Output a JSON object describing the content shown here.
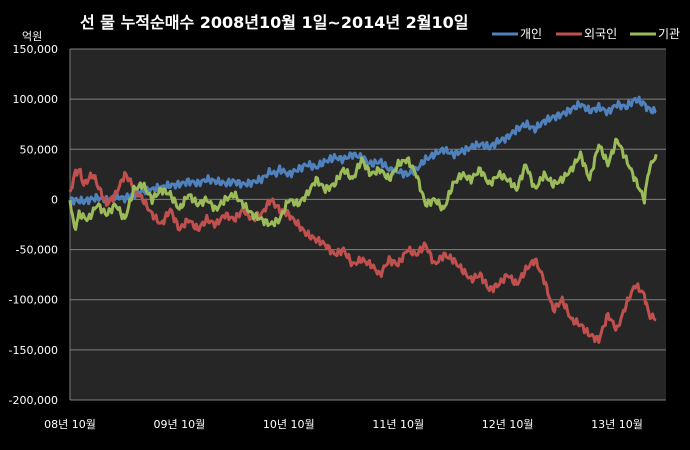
{
  "chart_data": {
    "type": "line",
    "title": "선 물 누적순매수 2008년10월 1일~2014년 2월10일",
    "unit_label": "억원",
    "ylim": [
      -200000,
      150000
    ],
    "y_ticks": [
      150000,
      100000,
      50000,
      0,
      -50000,
      -100000,
      -150000,
      -200000
    ],
    "y_tick_labels": [
      "150,000",
      "100,000",
      "50,000",
      "0",
      "-50,000",
      "-100,000",
      "-150,000",
      "-200,000"
    ],
    "x_tick_labels": [
      "08년 10월",
      "09년 10월",
      "10년 10월",
      "11년 10월",
      "12년 10월",
      "13년 10월"
    ],
    "x_tick_months": [
      0,
      12,
      24,
      36,
      48,
      60
    ],
    "x_range_months": [
      0,
      64.3
    ],
    "grid": "horizontal",
    "legend_position": "top-right",
    "series": [
      {
        "name": "개인",
        "color": "#4f81bd",
        "points": [
          [
            0,
            0
          ],
          [
            1.5,
            -2000
          ],
          [
            3,
            2000
          ],
          [
            4,
            -1000
          ],
          [
            5,
            3000
          ],
          [
            6,
            1000
          ],
          [
            7,
            5000
          ],
          [
            8,
            8000
          ],
          [
            9,
            10000
          ],
          [
            10,
            12000
          ],
          [
            11,
            14000
          ],
          [
            12,
            15000
          ],
          [
            13,
            18000
          ],
          [
            14,
            16000
          ],
          [
            15,
            20000
          ],
          [
            16,
            18000
          ],
          [
            17,
            16000
          ],
          [
            18,
            18000
          ],
          [
            19,
            15000
          ],
          [
            20,
            17000
          ],
          [
            21,
            20000
          ],
          [
            22,
            28000
          ],
          [
            22.5,
            25000
          ],
          [
            23,
            30000
          ],
          [
            24,
            25000
          ],
          [
            25,
            30000
          ],
          [
            26,
            35000
          ],
          [
            27,
            32000
          ],
          [
            28,
            38000
          ],
          [
            29,
            42000
          ],
          [
            30,
            40000
          ],
          [
            31,
            45000
          ],
          [
            32,
            42000
          ],
          [
            33,
            35000
          ],
          [
            34,
            38000
          ],
          [
            35,
            30000
          ],
          [
            36,
            28000
          ],
          [
            37,
            25000
          ],
          [
            38,
            30000
          ],
          [
            39,
            40000
          ],
          [
            40,
            45000
          ],
          [
            41,
            50000
          ],
          [
            42,
            45000
          ],
          [
            43,
            48000
          ],
          [
            44,
            52000
          ],
          [
            45,
            55000
          ],
          [
            46,
            52000
          ],
          [
            47,
            58000
          ],
          [
            48,
            62000
          ],
          [
            49,
            70000
          ],
          [
            50,
            75000
          ],
          [
            51,
            70000
          ],
          [
            52,
            78000
          ],
          [
            53,
            82000
          ],
          [
            54,
            85000
          ],
          [
            55,
            90000
          ],
          [
            56,
            95000
          ],
          [
            57,
            88000
          ],
          [
            58,
            92000
          ],
          [
            59,
            87000
          ],
          [
            60,
            95000
          ],
          [
            61,
            92000
          ],
          [
            62,
            100000
          ],
          [
            63,
            95000
          ],
          [
            63.5,
            90000
          ],
          [
            64.3,
            87000
          ]
        ]
      },
      {
        "name": "외국인",
        "color": "#c0504d",
        "points": [
          [
            0,
            5000
          ],
          [
            0.5,
            25000
          ],
          [
            1,
            30000
          ],
          [
            1.5,
            15000
          ],
          [
            2,
            20000
          ],
          [
            2.5,
            25000
          ],
          [
            3,
            15000
          ],
          [
            3.5,
            5000
          ],
          [
            4,
            -5000
          ],
          [
            5,
            5000
          ],
          [
            6,
            25000
          ],
          [
            6.5,
            20000
          ],
          [
            7,
            10000
          ],
          [
            8,
            0
          ],
          [
            9,
            -15000
          ],
          [
            10,
            -25000
          ],
          [
            11,
            -10000
          ],
          [
            12,
            -30000
          ],
          [
            13,
            -20000
          ],
          [
            14,
            -30000
          ],
          [
            15,
            -20000
          ],
          [
            16,
            -25000
          ],
          [
            17,
            -15000
          ],
          [
            18,
            -20000
          ],
          [
            19,
            -10000
          ],
          [
            20,
            -20000
          ],
          [
            21,
            -15000
          ],
          [
            22,
            0
          ],
          [
            22.5,
            -5000
          ],
          [
            23,
            -10000
          ],
          [
            24,
            -15000
          ],
          [
            25,
            -25000
          ],
          [
            26,
            -35000
          ],
          [
            27,
            -40000
          ],
          [
            28,
            -45000
          ],
          [
            29,
            -55000
          ],
          [
            30,
            -50000
          ],
          [
            31,
            -65000
          ],
          [
            32,
            -60000
          ],
          [
            33,
            -65000
          ],
          [
            34,
            -75000
          ],
          [
            35,
            -60000
          ],
          [
            36,
            -65000
          ],
          [
            37,
            -50000
          ],
          [
            38,
            -55000
          ],
          [
            39,
            -45000
          ],
          [
            40,
            -65000
          ],
          [
            41,
            -55000
          ],
          [
            42,
            -60000
          ],
          [
            43,
            -70000
          ],
          [
            44,
            -80000
          ],
          [
            45,
            -75000
          ],
          [
            46,
            -90000
          ],
          [
            47,
            -85000
          ],
          [
            48,
            -75000
          ],
          [
            49,
            -85000
          ],
          [
            50,
            -70000
          ],
          [
            51,
            -60000
          ],
          [
            52,
            -80000
          ],
          [
            53,
            -110000
          ],
          [
            54,
            -100000
          ],
          [
            55,
            -120000
          ],
          [
            56,
            -125000
          ],
          [
            57,
            -135000
          ],
          [
            58,
            -140000
          ],
          [
            59,
            -115000
          ],
          [
            60,
            -130000
          ],
          [
            61,
            -105000
          ],
          [
            62,
            -85000
          ],
          [
            63,
            -95000
          ],
          [
            63.5,
            -115000
          ],
          [
            64.3,
            -120000
          ]
        ]
      },
      {
        "name": "기관",
        "color": "#9bbb59",
        "points": [
          [
            0,
            0
          ],
          [
            0.5,
            -30000
          ],
          [
            1,
            -15000
          ],
          [
            2,
            -20000
          ],
          [
            3,
            -5000
          ],
          [
            4,
            -15000
          ],
          [
            5,
            -5000
          ],
          [
            6,
            -20000
          ],
          [
            7,
            10000
          ],
          [
            8,
            15000
          ],
          [
            9,
            0
          ],
          [
            10,
            10000
          ],
          [
            11,
            5000
          ],
          [
            12,
            -10000
          ],
          [
            13,
            5000
          ],
          [
            14,
            -5000
          ],
          [
            15,
            0
          ],
          [
            16,
            -10000
          ],
          [
            17,
            0
          ],
          [
            18,
            5000
          ],
          [
            19,
            -5000
          ],
          [
            20,
            -15000
          ],
          [
            21,
            -20000
          ],
          [
            22,
            -25000
          ],
          [
            23,
            -20000
          ],
          [
            24,
            0
          ],
          [
            25,
            -5000
          ],
          [
            26,
            5000
          ],
          [
            27,
            20000
          ],
          [
            28,
            10000
          ],
          [
            29,
            15000
          ],
          [
            30,
            30000
          ],
          [
            31,
            20000
          ],
          [
            32,
            40000
          ],
          [
            33,
            25000
          ],
          [
            34,
            30000
          ],
          [
            35,
            20000
          ],
          [
            36,
            35000
          ],
          [
            37,
            40000
          ],
          [
            38,
            25000
          ],
          [
            39,
            -5000
          ],
          [
            40,
            0
          ],
          [
            41,
            -10000
          ],
          [
            42,
            15000
          ],
          [
            43,
            25000
          ],
          [
            44,
            20000
          ],
          [
            45,
            30000
          ],
          [
            46,
            15000
          ],
          [
            47,
            25000
          ],
          [
            48,
            20000
          ],
          [
            49,
            10000
          ],
          [
            50,
            35000
          ],
          [
            51,
            10000
          ],
          [
            52,
            25000
          ],
          [
            53,
            15000
          ],
          [
            54,
            20000
          ],
          [
            55,
            30000
          ],
          [
            56,
            45000
          ],
          [
            57,
            20000
          ],
          [
            58,
            55000
          ],
          [
            59,
            35000
          ],
          [
            60,
            60000
          ],
          [
            61,
            40000
          ],
          [
            62,
            20000
          ],
          [
            63,
            0
          ],
          [
            63.5,
            30000
          ],
          [
            64.3,
            45000
          ]
        ]
      }
    ]
  }
}
